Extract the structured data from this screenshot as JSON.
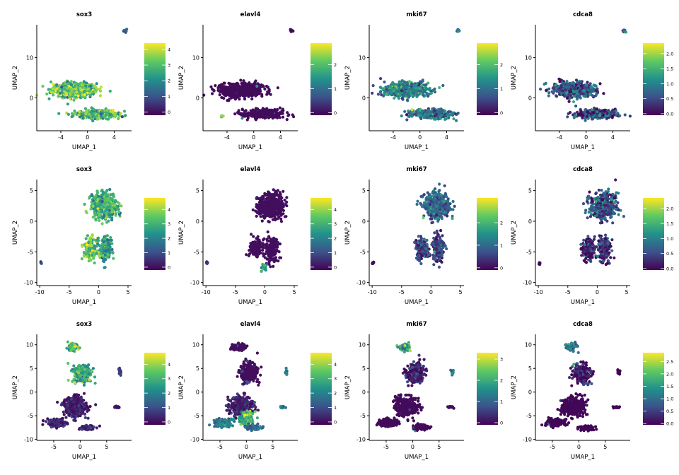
{
  "chart_data": [
    {
      "type": "scatter",
      "title": "sox3",
      "xlabel": "UMAP_1",
      "ylabel": "UMAP_2",
      "xlim": [
        -7.6,
        6.6
      ],
      "ylim": [
        -8.2,
        18.2
      ],
      "xticks": [
        -4,
        0,
        4
      ],
      "yticks": [
        0,
        10
      ],
      "color_scale": {
        "colors": [
          "#440154",
          "#3b528b",
          "#21918c",
          "#5ec962",
          "#fde725"
        ],
        "min": -0.2,
        "max": 4.4,
        "ticks": [
          0,
          1,
          2,
          3,
          4
        ]
      },
      "clusters": [
        {
          "x": -2,
          "y": 2,
          "sx": 3.0,
          "sy": 1.6,
          "n": 550,
          "level": 3.0
        },
        {
          "x": 1.5,
          "y": -4,
          "sx": 2.8,
          "sy": 1.0,
          "n": 300,
          "level": 2.8
        },
        {
          "x": 5.7,
          "y": 16.7,
          "sx": 0.2,
          "sy": 0.3,
          "n": 10,
          "level": 1.0
        }
      ]
    },
    {
      "type": "scatter",
      "title": "elavl4",
      "xlabel": "UMAP_1",
      "ylabel": "UMAP_2",
      "xlim": [
        -7.6,
        6.6
      ],
      "ylim": [
        -8.2,
        18.2
      ],
      "xticks": [
        -4,
        0,
        4
      ],
      "yticks": [
        0,
        10
      ],
      "color_scale": {
        "colors": [
          "#440154",
          "#3b528b",
          "#21918c",
          "#5ec962",
          "#fde725"
        ],
        "min": -0.1,
        "max": 2.9,
        "ticks": [
          0,
          1,
          2
        ]
      },
      "clusters": [
        {
          "x": -2,
          "y": 2,
          "sx": 3.0,
          "sy": 1.6,
          "n": 550,
          "level": 0.0
        },
        {
          "x": 1.5,
          "y": -4,
          "sx": 2.8,
          "sy": 1.0,
          "n": 300,
          "level": 0.0
        },
        {
          "x": 5.7,
          "y": 16.7,
          "sx": 0.2,
          "sy": 0.3,
          "n": 10,
          "level": 0.0
        },
        {
          "x": -4.8,
          "y": -4.5,
          "sx": 0.2,
          "sy": 0.3,
          "n": 4,
          "level": 2.0
        }
      ]
    },
    {
      "type": "scatter",
      "title": "mki67",
      "xlabel": "UMAP_1",
      "ylabel": "UMAP_2",
      "xlim": [
        -7.6,
        6.6
      ],
      "ylim": [
        -8.2,
        18.2
      ],
      "xticks": [
        -4,
        0,
        4
      ],
      "yticks": [
        0,
        10
      ],
      "color_scale": {
        "colors": [
          "#440154",
          "#3b528b",
          "#21918c",
          "#5ec962",
          "#fde725"
        ],
        "min": -0.1,
        "max": 2.9,
        "ticks": [
          0,
          1,
          2
        ]
      },
      "clusters": [
        {
          "x": -2,
          "y": 2,
          "sx": 3.0,
          "sy": 1.6,
          "n": 550,
          "level": 1.2
        },
        {
          "x": 1.5,
          "y": -4,
          "sx": 2.8,
          "sy": 1.0,
          "n": 300,
          "level": 1.0
        },
        {
          "x": 5.7,
          "y": 16.7,
          "sx": 0.2,
          "sy": 0.3,
          "n": 10,
          "level": 1.0
        }
      ]
    },
    {
      "type": "scatter",
      "title": "cdca8",
      "xlabel": "UMAP_1",
      "ylabel": "UMAP_2",
      "xlim": [
        -7.6,
        6.6
      ],
      "ylim": [
        -8.2,
        18.2
      ],
      "xticks": [
        -4,
        0,
        4
      ],
      "yticks": [
        0,
        10
      ],
      "color_scale": {
        "colors": [
          "#440154",
          "#3b528b",
          "#21918c",
          "#5ec962",
          "#fde725"
        ],
        "min": -0.05,
        "max": 2.35,
        "ticks": [
          0,
          0.5,
          1,
          1.5,
          2
        ],
        "tick_labels": [
          "0.0",
          "0.5",
          "1.0",
          "1.5",
          "2.0"
        ]
      },
      "clusters": [
        {
          "x": -2,
          "y": 2,
          "sx": 3.0,
          "sy": 1.6,
          "n": 550,
          "level": 0.6
        },
        {
          "x": 1.5,
          "y": -4,
          "sx": 2.8,
          "sy": 1.0,
          "n": 300,
          "level": 0.4
        },
        {
          "x": 5.7,
          "y": 16.7,
          "sx": 0.2,
          "sy": 0.3,
          "n": 10,
          "level": 0.5
        }
      ]
    },
    {
      "type": "scatter",
      "title": "sox3",
      "xlabel": "UMAP_1",
      "ylabel": "UMAP_2",
      "xlim": [
        -10.5,
        5.6
      ],
      "ylim": [
        -10.5,
        6.8
      ],
      "xticks": [
        -10,
        -5,
        0,
        5
      ],
      "yticks": [
        -10,
        -5,
        0,
        5
      ],
      "color_scale": {
        "colors": [
          "#440154",
          "#3b528b",
          "#21918c",
          "#5ec962",
          "#fde725"
        ],
        "min": -0.2,
        "max": 4.8,
        "ticks": [
          0,
          1,
          2,
          3,
          4
        ]
      },
      "clusters": [
        {
          "x": 1,
          "y": 2.5,
          "sx": 2.0,
          "sy": 1.8,
          "n": 450,
          "level": 3.0
        },
        {
          "x": -1.5,
          "y": -4.5,
          "sx": 1.0,
          "sy": 1.5,
          "n": 140,
          "level": 3.3
        },
        {
          "x": 1.2,
          "y": -4.5,
          "sx": 1.0,
          "sy": 2.0,
          "n": 160,
          "level": 2.5
        },
        {
          "x": -9.8,
          "y": -6.8,
          "sx": 0.15,
          "sy": 0.2,
          "n": 6,
          "level": 1.5
        }
      ]
    },
    {
      "type": "scatter",
      "title": "elavl4",
      "xlabel": "UMAP_1",
      "ylabel": "UMAP_2",
      "xlim": [
        -10.5,
        5.6
      ],
      "ylim": [
        -10.5,
        6.8
      ],
      "xticks": [
        -10,
        -5,
        0,
        5
      ],
      "yticks": [
        -10,
        -5,
        0,
        5
      ],
      "color_scale": {
        "colors": [
          "#440154",
          "#3b528b",
          "#21918c",
          "#5ec962",
          "#fde725"
        ],
        "min": -0.2,
        "max": 4.8,
        "ticks": [
          0,
          1,
          2,
          3,
          4
        ]
      },
      "clusters": [
        {
          "x": 1,
          "y": 2.5,
          "sx": 2.0,
          "sy": 1.8,
          "n": 450,
          "level": 0.0
        },
        {
          "x": -1.5,
          "y": -4.5,
          "sx": 1.0,
          "sy": 1.5,
          "n": 140,
          "level": 0.0
        },
        {
          "x": 1.2,
          "y": -4.5,
          "sx": 1.0,
          "sy": 2.0,
          "n": 160,
          "level": 0.0
        },
        {
          "x": -9.8,
          "y": -6.8,
          "sx": 0.15,
          "sy": 0.2,
          "n": 6,
          "level": 0.0
        },
        {
          "x": -0.2,
          "y": -7.5,
          "sx": 0.4,
          "sy": 0.8,
          "n": 20,
          "level": 2.8
        }
      ]
    },
    {
      "type": "scatter",
      "title": "mki67",
      "xlabel": "UMAP_1",
      "ylabel": "UMAP_2",
      "xlim": [
        -10.5,
        5.6
      ],
      "ylim": [
        -10.5,
        6.8
      ],
      "xticks": [
        -10,
        -5,
        0,
        5
      ],
      "yticks": [
        -10,
        -5,
        0,
        5
      ],
      "color_scale": {
        "colors": [
          "#440154",
          "#3b528b",
          "#21918c",
          "#5ec962",
          "#fde725"
        ],
        "min": -0.1,
        "max": 3.1,
        "ticks": [
          0,
          1,
          2
        ]
      },
      "clusters": [
        {
          "x": 1,
          "y": 2.5,
          "sx": 2.0,
          "sy": 1.8,
          "n": 450,
          "level": 1.0
        },
        {
          "x": -1.5,
          "y": -4.5,
          "sx": 1.0,
          "sy": 1.5,
          "n": 140,
          "level": 0.5
        },
        {
          "x": 1.2,
          "y": -4.5,
          "sx": 1.0,
          "sy": 2.0,
          "n": 160,
          "level": 0.5
        },
        {
          "x": -9.8,
          "y": -6.8,
          "sx": 0.15,
          "sy": 0.2,
          "n": 6,
          "level": 0.0
        }
      ]
    },
    {
      "type": "scatter",
      "title": "cdca8",
      "xlabel": "UMAP_1",
      "ylabel": "UMAP_2",
      "xlim": [
        -10.5,
        5.6
      ],
      "ylim": [
        -10.5,
        6.8
      ],
      "xticks": [
        -10,
        -5,
        0,
        5
      ],
      "yticks": [
        -10,
        -5,
        0,
        5
      ],
      "color_scale": {
        "colors": [
          "#440154",
          "#3b528b",
          "#21918c",
          "#5ec962",
          "#fde725"
        ],
        "min": -0.05,
        "max": 2.35,
        "ticks": [
          0,
          0.5,
          1,
          1.5,
          2
        ],
        "tick_labels": [
          "0.0",
          "0.5",
          "1.0",
          "1.5",
          "2.0"
        ]
      },
      "clusters": [
        {
          "x": 1,
          "y": 2.5,
          "sx": 2.0,
          "sy": 1.8,
          "n": 450,
          "level": 0.5
        },
        {
          "x": -1.5,
          "y": -4.5,
          "sx": 1.0,
          "sy": 1.5,
          "n": 140,
          "level": 0.2
        },
        {
          "x": 1.2,
          "y": -4.5,
          "sx": 1.0,
          "sy": 2.0,
          "n": 160,
          "level": 0.2
        },
        {
          "x": -9.8,
          "y": -6.8,
          "sx": 0.15,
          "sy": 0.2,
          "n": 6,
          "level": 0.0
        }
      ]
    },
    {
      "type": "scatter",
      "title": "sox3",
      "xlabel": "UMAP_1",
      "ylabel": "UMAP_2",
      "xlim": [
        -8.2,
        9.7
      ],
      "ylim": [
        -10.2,
        12.2
      ],
      "xticks": [
        -5,
        0,
        5
      ],
      "yticks": [
        -10,
        -5,
        0,
        5,
        10
      ],
      "color_scale": {
        "colors": [
          "#440154",
          "#3b528b",
          "#21918c",
          "#5ec962",
          "#fde725"
        ],
        "min": -0.2,
        "max": 4.8,
        "ticks": [
          0,
          1,
          2,
          3,
          4
        ]
      },
      "clusters": [
        {
          "x": -1.5,
          "y": 9.5,
          "sx": 1.0,
          "sy": 0.7,
          "n": 80,
          "level": 3.3
        },
        {
          "x": 0.5,
          "y": 4,
          "sx": 1.5,
          "sy": 1.8,
          "n": 220,
          "level": 2.8
        },
        {
          "x": -1,
          "y": -3,
          "sx": 2.0,
          "sy": 1.8,
          "n": 350,
          "level": 0.2
        },
        {
          "x": -4.5,
          "y": -6.5,
          "sx": 1.5,
          "sy": 0.7,
          "n": 200,
          "level": 0.3
        },
        {
          "x": 1.5,
          "y": -7.5,
          "sx": 1.2,
          "sy": 0.5,
          "n": 80,
          "level": 0.2
        },
        {
          "x": 7.5,
          "y": 4.2,
          "sx": 0.3,
          "sy": 0.6,
          "n": 15,
          "level": 0.5
        },
        {
          "x": 7,
          "y": -3.2,
          "sx": 0.6,
          "sy": 0.2,
          "n": 20,
          "level": 0.1
        }
      ]
    },
    {
      "type": "scatter",
      "title": "elavl4",
      "xlabel": "UMAP_1",
      "ylabel": "UMAP_2",
      "xlim": [
        -8.2,
        9.7
      ],
      "ylim": [
        -10.2,
        12.2
      ],
      "xticks": [
        -5,
        0,
        5
      ],
      "yticks": [
        -10,
        -5,
        0,
        5,
        10
      ],
      "color_scale": {
        "colors": [
          "#440154",
          "#3b528b",
          "#21918c",
          "#5ec962",
          "#fde725"
        ],
        "min": -0.2,
        "max": 4.8,
        "ticks": [
          0,
          1,
          2,
          3,
          4
        ]
      },
      "clusters": [
        {
          "x": -1.5,
          "y": 9.5,
          "sx": 1.0,
          "sy": 0.7,
          "n": 80,
          "level": 0.0
        },
        {
          "x": 0.5,
          "y": 4,
          "sx": 1.5,
          "sy": 1.8,
          "n": 220,
          "level": 0.0
        },
        {
          "x": -1,
          "y": -3,
          "sx": 2.0,
          "sy": 1.8,
          "n": 350,
          "level": 0.3
        },
        {
          "x": -4.5,
          "y": -6.5,
          "sx": 1.5,
          "sy": 0.7,
          "n": 200,
          "level": 1.8
        },
        {
          "x": 0,
          "y": -5.5,
          "sx": 1.2,
          "sy": 1.2,
          "n": 120,
          "level": 3.0
        },
        {
          "x": 1.5,
          "y": -7.5,
          "sx": 1.2,
          "sy": 0.5,
          "n": 80,
          "level": 1.5
        },
        {
          "x": 7.5,
          "y": 4.2,
          "sx": 0.3,
          "sy": 0.6,
          "n": 15,
          "level": 2.5
        },
        {
          "x": 7,
          "y": -3.2,
          "sx": 0.6,
          "sy": 0.2,
          "n": 20,
          "level": 2.0
        }
      ]
    },
    {
      "type": "scatter",
      "title": "mki67",
      "xlabel": "UMAP_1",
      "ylabel": "UMAP_2",
      "xlim": [
        -8.2,
        9.7
      ],
      "ylim": [
        -10.2,
        12.2
      ],
      "xticks": [
        -5,
        0,
        5
      ],
      "yticks": [
        -10,
        -5,
        0,
        5,
        10
      ],
      "color_scale": {
        "colors": [
          "#440154",
          "#3b528b",
          "#21918c",
          "#5ec962",
          "#fde725"
        ],
        "min": -0.1,
        "max": 3.3,
        "ticks": [
          0,
          1,
          2,
          3
        ]
      },
      "clusters": [
        {
          "x": -1.5,
          "y": 9.5,
          "sx": 1.0,
          "sy": 0.7,
          "n": 80,
          "level": 1.8
        },
        {
          "x": 0.5,
          "y": 4,
          "sx": 1.5,
          "sy": 1.8,
          "n": 220,
          "level": 0.2
        },
        {
          "x": -1,
          "y": -3,
          "sx": 2.0,
          "sy": 1.8,
          "n": 350,
          "level": 0.0
        },
        {
          "x": -4.5,
          "y": -6.5,
          "sx": 1.5,
          "sy": 0.7,
          "n": 200,
          "level": 0.0
        },
        {
          "x": 1.5,
          "y": -7.5,
          "sx": 1.2,
          "sy": 0.5,
          "n": 80,
          "level": 0.0
        },
        {
          "x": 7.5,
          "y": 4.2,
          "sx": 0.3,
          "sy": 0.6,
          "n": 15,
          "level": 1.5
        },
        {
          "x": 7,
          "y": -3.2,
          "sx": 0.6,
          "sy": 0.2,
          "n": 20,
          "level": 0.0
        }
      ]
    },
    {
      "type": "scatter",
      "title": "cdca8",
      "xlabel": "UMAP_1",
      "ylabel": "UMAP_2",
      "xlim": [
        -8.2,
        9.7
      ],
      "ylim": [
        -10.2,
        12.2
      ],
      "xticks": [
        -5,
        0,
        5
      ],
      "yticks": [
        -10,
        -5,
        0,
        5,
        10
      ],
      "color_scale": {
        "colors": [
          "#440154",
          "#3b528b",
          "#21918c",
          "#5ec962",
          "#fde725"
        ],
        "min": -0.05,
        "max": 2.85,
        "ticks": [
          0,
          0.5,
          1,
          1.5,
          2,
          2.5
        ],
        "tick_labels": [
          "0.0",
          "0.5",
          "1.0",
          "1.5",
          "2.0",
          "2.5"
        ]
      },
      "clusters": [
        {
          "x": -1.5,
          "y": 9.5,
          "sx": 1.0,
          "sy": 0.7,
          "n": 80,
          "level": 1.0
        },
        {
          "x": 0.5,
          "y": 4,
          "sx": 1.5,
          "sy": 1.8,
          "n": 220,
          "level": 0.1
        },
        {
          "x": -1,
          "y": -3,
          "sx": 2.0,
          "sy": 1.8,
          "n": 350,
          "level": 0.0
        },
        {
          "x": -4.5,
          "y": -6.5,
          "sx": 1.5,
          "sy": 0.7,
          "n": 200,
          "level": 0.0
        },
        {
          "x": 1.5,
          "y": -7.5,
          "sx": 1.2,
          "sy": 0.5,
          "n": 80,
          "level": 0.0
        },
        {
          "x": 7.5,
          "y": 4.2,
          "sx": 0.3,
          "sy": 0.6,
          "n": 15,
          "level": 0.0
        },
        {
          "x": 7,
          "y": -3.2,
          "sx": 0.6,
          "sy": 0.2,
          "n": 20,
          "level": 0.0
        }
      ]
    }
  ]
}
